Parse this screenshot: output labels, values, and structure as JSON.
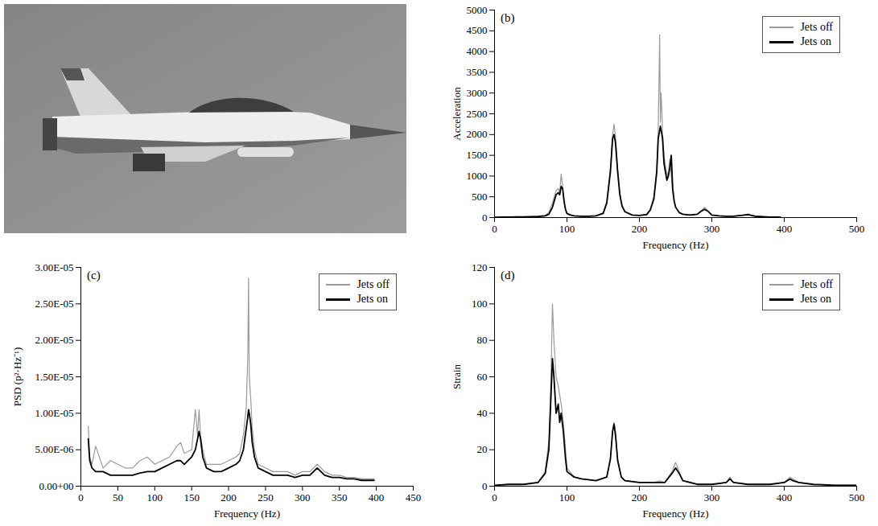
{
  "chart_data": [
    {
      "type": "line",
      "title": "(b)",
      "xlabel": "Frequency (Hz)",
      "ylabel": "Acceleration",
      "x": [
        0,
        10,
        20,
        30,
        40,
        50,
        60,
        70,
        75,
        80,
        85,
        88,
        90,
        92,
        94,
        96,
        98,
        100,
        105,
        110,
        120,
        130,
        140,
        150,
        155,
        160,
        163,
        165,
        167,
        170,
        173,
        176,
        180,
        190,
        200,
        210,
        215,
        220,
        224,
        226,
        228,
        229,
        230,
        231,
        232,
        234,
        236,
        238,
        240,
        242,
        244,
        246,
        248,
        250,
        255,
        260,
        270,
        280,
        285,
        290,
        295,
        300,
        310,
        320,
        330,
        340,
        345,
        350,
        355,
        360,
        370,
        380,
        390,
        395
      ],
      "series": [
        {
          "name": "Jets off",
          "color": "#9a9a9a",
          "values": [
            5,
            10,
            10,
            15,
            15,
            20,
            30,
            50,
            120,
            350,
            650,
            700,
            600,
            1050,
            750,
            350,
            180,
            100,
            60,
            40,
            30,
            30,
            40,
            120,
            400,
            1200,
            2000,
            2250,
            1950,
            1200,
            600,
            300,
            150,
            60,
            50,
            80,
            200,
            500,
            1200,
            2100,
            4400,
            2300,
            3000,
            2600,
            2000,
            1500,
            1250,
            1000,
            1100,
            1400,
            1000,
            600,
            400,
            250,
            120,
            80,
            60,
            80,
            150,
            250,
            150,
            60,
            40,
            30,
            30,
            50,
            60,
            90,
            50,
            30,
            20,
            10,
            10,
            5
          ]
        },
        {
          "name": "Jets on",
          "color": "#000000",
          "values": [
            5,
            10,
            10,
            15,
            15,
            20,
            25,
            40,
            80,
            250,
            550,
            600,
            550,
            750,
            700,
            400,
            200,
            100,
            60,
            40,
            30,
            30,
            40,
            100,
            350,
            1100,
            1900,
            2000,
            1800,
            1100,
            550,
            280,
            140,
            60,
            50,
            70,
            180,
            450,
            1100,
            1900,
            2100,
            2200,
            2100,
            2000,
            1900,
            1300,
            1100,
            900,
            1000,
            1200,
            1500,
            700,
            400,
            250,
            120,
            80,
            60,
            80,
            150,
            200,
            150,
            60,
            40,
            30,
            30,
            50,
            60,
            70,
            50,
            30,
            20,
            10,
            10,
            5
          ]
        }
      ],
      "xlim": [
        0,
        500
      ],
      "xticks": [
        0,
        100,
        200,
        300,
        400,
        500
      ],
      "ylim": [
        0,
        5000
      ],
      "yticks": [
        0,
        500,
        1000,
        1500,
        2000,
        2500,
        3000,
        3500,
        4000,
        4500,
        5000
      ],
      "legend": "top-right",
      "grid": false
    },
    {
      "type": "line",
      "title": "(c)",
      "xlabel": "Frequency (Hz)",
      "ylabel": "PSD (p²·Hz⁻¹)",
      "x": [
        10,
        12,
        15,
        20,
        30,
        40,
        50,
        60,
        70,
        80,
        90,
        100,
        110,
        120,
        130,
        135,
        140,
        150,
        155,
        158,
        160,
        162,
        165,
        170,
        180,
        190,
        200,
        210,
        215,
        220,
        224,
        226,
        227,
        228,
        230,
        232,
        235,
        240,
        250,
        260,
        270,
        280,
        290,
        300,
        310,
        320,
        330,
        340,
        350,
        360,
        370,
        380,
        390,
        397
      ],
      "series": [
        {
          "name": "Jets off",
          "color": "#9a9a9a",
          "values": [
            8.2e-06,
            4e-06,
            3e-06,
            5.5e-06,
            2.5e-06,
            3.5e-06,
            3e-06,
            2.5e-06,
            2.5e-06,
            3.5e-06,
            4e-06,
            3e-06,
            3.5e-06,
            4e-06,
            5.5e-06,
            6e-06,
            4.5e-06,
            5e-06,
            1.05e-05,
            7e-06,
            1.05e-05,
            7e-06,
            5e-06,
            3e-06,
            3e-06,
            3e-06,
            3.5e-06,
            4e-06,
            4.5e-06,
            7e-06,
            1.1e-05,
            1.8e-05,
            2.85e-05,
            1.5e-05,
            1.2e-05,
            8e-06,
            5e-06,
            3e-06,
            2.5e-06,
            2e-06,
            2e-06,
            2e-06,
            1.5e-06,
            2e-06,
            2e-06,
            3e-06,
            2e-06,
            1.5e-06,
            1.5e-06,
            1.2e-06,
            1.2e-06,
            1e-06,
            1e-06,
            1e-06
          ]
        },
        {
          "name": "Jets on",
          "color": "#000000",
          "values": [
            6.5e-06,
            3.5e-06,
            2.5e-06,
            2e-06,
            2e-06,
            1.5e-06,
            1.5e-06,
            1.5e-06,
            1.5e-06,
            1.8e-06,
            2e-06,
            2e-06,
            2.5e-06,
            3e-06,
            3.5e-06,
            3.5e-06,
            3e-06,
            4e-06,
            5e-06,
            6.5e-06,
            7.5e-06,
            6.5e-06,
            4e-06,
            2.5e-06,
            2e-06,
            2e-06,
            2.5e-06,
            3e-06,
            3.5e-06,
            5e-06,
            8e-06,
            9.5e-06,
            1.05e-05,
            1e-05,
            8.5e-06,
            6e-06,
            4e-06,
            2.5e-06,
            2e-06,
            1.5e-06,
            1.5e-06,
            1.5e-06,
            1.2e-06,
            1.5e-06,
            1.5e-06,
            2.5e-06,
            1.5e-06,
            1.2e-06,
            1.2e-06,
            1e-06,
            1e-06,
            8e-07,
            8e-07,
            8e-07
          ]
        }
      ],
      "xlim": [
        0,
        450
      ],
      "xticks": [
        0,
        50,
        100,
        150,
        200,
        250,
        300,
        350,
        400,
        450
      ],
      "ylim": [
        0,
        3e-05
      ],
      "yticks": [
        {
          "value": 0,
          "label": "0.00+00"
        },
        {
          "value": 5e-06,
          "label": "5.00E-06"
        },
        {
          "value": 1e-05,
          "label": "1.00E-05"
        },
        {
          "value": 1.5e-05,
          "label": "1.50E-05"
        },
        {
          "value": 2e-05,
          "label": "2.00E-05"
        },
        {
          "value": 2.5e-05,
          "label": "2.50E-05"
        },
        {
          "value": 3e-05,
          "label": "3.00E-05"
        }
      ],
      "legend": "top-right",
      "grid": false
    },
    {
      "type": "line",
      "title": "(d)",
      "xlabel": "Frequency (Hz)",
      "ylabel": "Strain",
      "x": [
        0,
        20,
        40,
        60,
        70,
        75,
        78,
        80,
        82,
        85,
        88,
        90,
        92,
        95,
        98,
        100,
        110,
        120,
        140,
        155,
        160,
        163,
        165,
        167,
        170,
        175,
        180,
        200,
        220,
        228,
        235,
        245,
        250,
        255,
        260,
        280,
        300,
        320,
        325,
        330,
        350,
        380,
        400,
        408,
        412,
        420,
        440,
        470,
        500
      ],
      "series": [
        {
          "name": "Jets off",
          "color": "#9a9a9a",
          "values": [
            0.5,
            1,
            1,
            2,
            8,
            25,
            60,
            100,
            80,
            60,
            55,
            50,
            45,
            35,
            20,
            10,
            5,
            4,
            3,
            5,
            15,
            30,
            35,
            30,
            15,
            5,
            3,
            2,
            2,
            3,
            2,
            8,
            13,
            8,
            3,
            1,
            1,
            2,
            5,
            2,
            1,
            1,
            2,
            5,
            4,
            2,
            1,
            0.5,
            0.5
          ]
        },
        {
          "name": "Jets on",
          "color": "#000000",
          "values": [
            0.5,
            1,
            1,
            2,
            7,
            20,
            50,
            70,
            60,
            40,
            45,
            35,
            40,
            30,
            15,
            8,
            5,
            4,
            3,
            5,
            15,
            30,
            34,
            28,
            14,
            5,
            3,
            2,
            2,
            2,
            2,
            7,
            10,
            7,
            3,
            1,
            1,
            2,
            4,
            2,
            1,
            1,
            2,
            4,
            3,
            2,
            1,
            0.5,
            0.5
          ]
        }
      ],
      "xlim": [
        0,
        500
      ],
      "xticks": [
        0,
        100,
        200,
        300,
        400,
        500
      ],
      "ylim": [
        0,
        120
      ],
      "yticks": [
        0,
        20,
        40,
        60,
        80,
        100,
        120
      ],
      "legend": "top-right",
      "grid": false
    }
  ]
}
